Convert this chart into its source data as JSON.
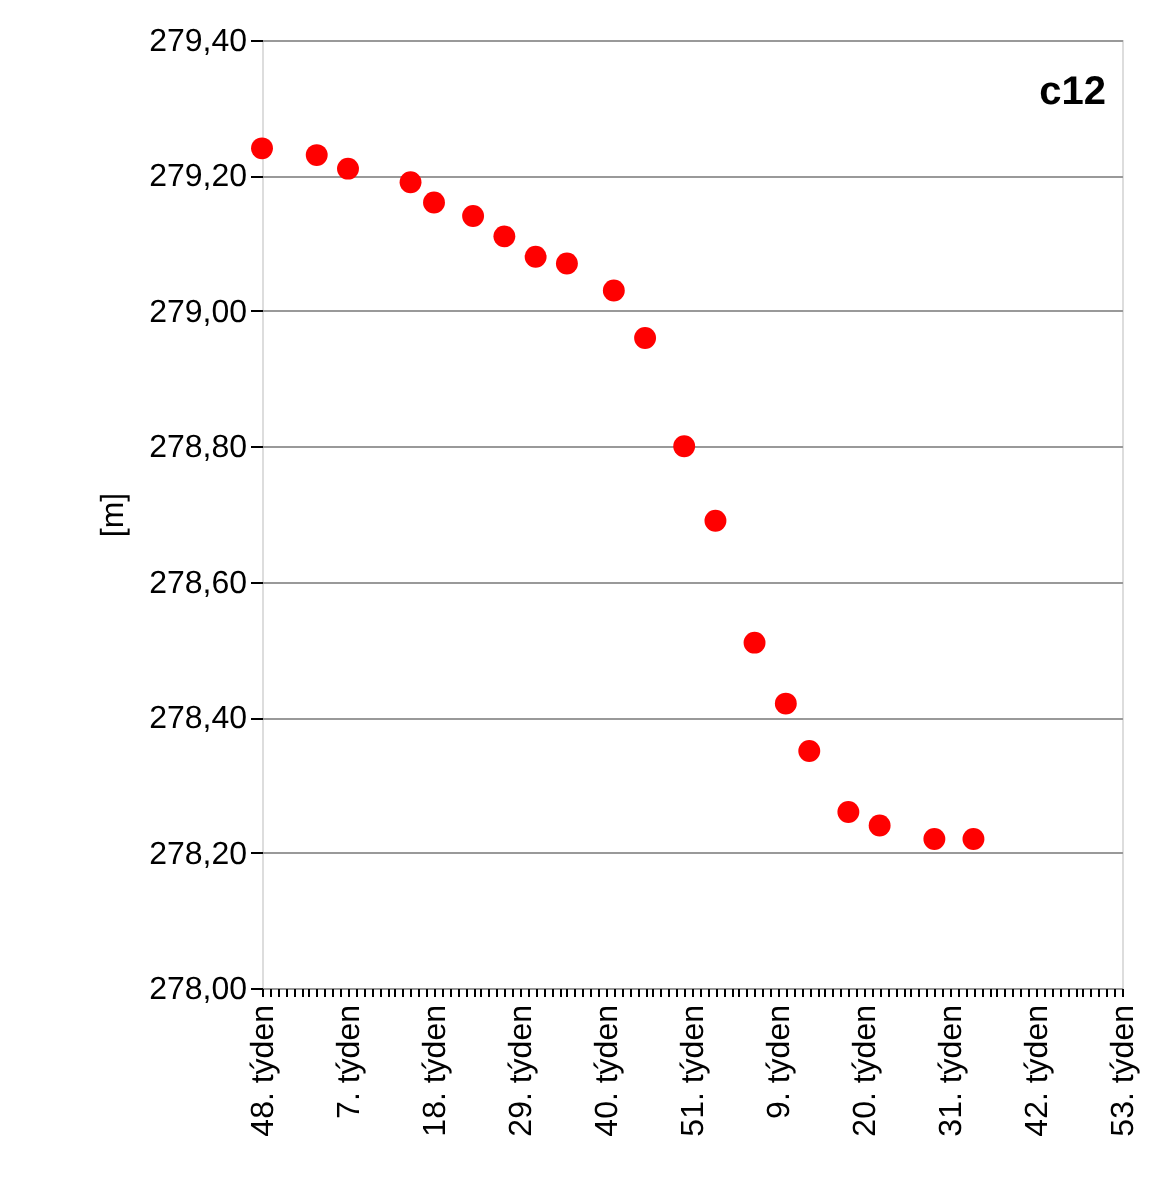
{
  "chart_data": {
    "type": "scatter",
    "ylabel": "[m]",
    "annotations": [
      "c12"
    ],
    "categories": [
      "48. týden",
      null,
      null,
      null,
      null,
      null,
      null,
      null,
      null,
      null,
      null,
      "7. týden",
      null,
      null,
      null,
      null,
      null,
      null,
      null,
      null,
      null,
      null,
      "18. týden",
      null,
      null,
      null,
      null,
      null,
      null,
      null,
      null,
      null,
      null,
      "29. týden",
      null,
      null,
      null,
      null,
      null,
      null,
      null,
      null,
      null,
      null,
      "40. týden",
      null,
      null,
      null,
      null,
      null,
      null,
      null,
      null,
      null,
      null,
      "51. týden",
      null,
      null,
      null,
      null,
      null,
      null,
      null,
      null,
      null,
      null,
      "9. týden",
      null,
      null,
      null,
      null,
      null,
      null,
      null,
      null,
      null,
      null,
      "20. týden",
      null,
      null,
      null,
      null,
      null,
      null,
      null,
      null,
      null,
      null,
      "31. týden",
      null,
      null,
      null,
      null,
      null,
      null,
      null,
      null,
      null,
      null,
      "42. týden",
      null,
      null,
      null,
      null,
      null,
      null,
      null,
      null,
      null,
      null,
      "53. týden"
    ],
    "series": [
      {
        "color": "#ff0000",
        "values": [
          279.24,
          null,
          null,
          null,
          null,
          null,
          null,
          279.23,
          null,
          null,
          null,
          279.21,
          null,
          null,
          null,
          null,
          null,
          null,
          null,
          279.19,
          null,
          null,
          279.16,
          null,
          null,
          null,
          null,
          279.14,
          null,
          null,
          null,
          279.11,
          null,
          null,
          null,
          279.08,
          null,
          null,
          null,
          279.07,
          null,
          null,
          null,
          null,
          null,
          279.03,
          null,
          null,
          null,
          278.96,
          null,
          null,
          null,
          null,
          278.8,
          null,
          null,
          null,
          278.69,
          null,
          null,
          null,
          null,
          278.51,
          null,
          null,
          null,
          278.42,
          null,
          null,
          278.35,
          null,
          null,
          null,
          null,
          278.26,
          null,
          null,
          null,
          278.24,
          null,
          null,
          null,
          null,
          null,
          null,
          278.22,
          null,
          null,
          null,
          null,
          278.22,
          null,
          null,
          null,
          null,
          null,
          null,
          null,
          null,
          null,
          null,
          null,
          null,
          null,
          null,
          null,
          null,
          null,
          null,
          null
        ]
      }
    ],
    "ylim": [
      278.0,
      279.4
    ],
    "yticks": [
      {
        "value": 278.0,
        "label": "278,00"
      },
      {
        "value": 278.2,
        "label": "278,20"
      },
      {
        "value": 278.4,
        "label": "278,40"
      },
      {
        "value": 278.6,
        "label": "278,60"
      },
      {
        "value": 278.8,
        "label": "278,80"
      },
      {
        "value": 279.0,
        "label": "279,00"
      },
      {
        "value": 279.2,
        "label": "279,20"
      },
      {
        "value": 279.4,
        "label": "279,40"
      }
    ],
    "grid": "y",
    "marker": "circle"
  }
}
